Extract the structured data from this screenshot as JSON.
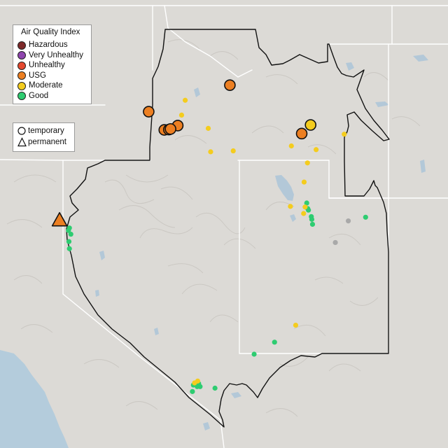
{
  "legend": {
    "title": "Air Quality Index",
    "categories": [
      {
        "label": "Hazardous",
        "color": "#7e2a2a"
      },
      {
        "label": "Very Unhealthy",
        "color": "#8e44ad"
      },
      {
        "label": "Unhealthy",
        "color": "#e4492f"
      },
      {
        "label": "USG",
        "color": "#ec7f22"
      },
      {
        "label": "Moderate",
        "color": "#f4cc1e"
      },
      {
        "label": "Good",
        "color": "#2ecc71"
      }
    ],
    "monitor_types": [
      {
        "label": "temporary",
        "shape": "circle-icon"
      },
      {
        "label": "permanent",
        "shape": "triangle-icon"
      }
    ]
  },
  "colors": {
    "land": "#dcdad6",
    "ocean": "#b4ccdc",
    "lake": "#b3c8d8",
    "boundary": "#111111",
    "state_line": "#ffffff",
    "no_data": "#a9a9a9"
  },
  "monitors": [
    {
      "type": "temporary",
      "category": "USG",
      "lon": -114.78,
      "lat": 49.56
    },
    {
      "type": "temporary",
      "category": "USG",
      "lon": -118.16,
      "lat": 48.7
    },
    {
      "type": "temporary",
      "category": "USG",
      "lon": -116.95,
      "lat": 48.25
    },
    {
      "type": "temporary",
      "category": "USG",
      "lon": -117.51,
      "lat": 48.11
    },
    {
      "type": "temporary",
      "category": "USG",
      "lon": -117.32,
      "lat": 48.12
    },
    {
      "type": "temporary",
      "category": "USG",
      "lon": -117.25,
      "lat": 48.14
    },
    {
      "type": "temporary",
      "category": "USG",
      "lon": -111.79,
      "lat": 47.99
    },
    {
      "type": "temporary",
      "category": "Moderate",
      "lon": -115.68,
      "lat": 48.16
    },
    {
      "type": "temporary",
      "category": "Moderate",
      "lon": -111.42,
      "lat": 48.27
    },
    {
      "type": "temporary",
      "category": "Moderate",
      "lon": -116.64,
      "lat": 49.07
    },
    {
      "type": "temporary",
      "category": "Moderate",
      "lon": -116.79,
      "lat": 48.59
    },
    {
      "type": "temporary",
      "category": "Moderate",
      "lon": -115.58,
      "lat": 47.4
    },
    {
      "type": "temporary",
      "category": "Moderate",
      "lon": -114.64,
      "lat": 47.43
    },
    {
      "type": "temporary",
      "category": "Moderate",
      "lon": -112.22,
      "lat": 47.59
    },
    {
      "type": "temporary",
      "category": "Moderate",
      "lon": -111.19,
      "lat": 47.47
    },
    {
      "type": "temporary",
      "category": "Moderate",
      "lon": -110.02,
      "lat": 47.97
    },
    {
      "type": "temporary",
      "category": "Moderate",
      "lon": -111.55,
      "lat": 47.04
    },
    {
      "type": "temporary",
      "category": "Moderate",
      "lon": -111.69,
      "lat": 46.42
    },
    {
      "type": "temporary",
      "category": "Moderate",
      "lon": -112.26,
      "lat": 45.63
    },
    {
      "type": "temporary",
      "category": "Moderate",
      "lon": -111.65,
      "lat": 45.61
    },
    {
      "type": "temporary",
      "category": "Moderate",
      "lon": -111.71,
      "lat": 45.4
    },
    {
      "type": "temporary",
      "category": "Moderate",
      "lon": -112.04,
      "lat": 41.78
    },
    {
      "type": "temporary",
      "category": "Moderate",
      "lon": -116.12,
      "lat": 39.97
    },
    {
      "type": "temporary",
      "category": "Moderate",
      "lon": -116.25,
      "lat": 39.91
    },
    {
      "type": "permanent",
      "category": "USG",
      "lon": -121.87,
      "lat": 45.19
    },
    {
      "type": "temporary",
      "category": "Good",
      "lon": -121.46,
      "lat": 44.93
    },
    {
      "type": "temporary",
      "category": "Good",
      "lon": -121.5,
      "lat": 44.85
    },
    {
      "type": "temporary",
      "category": "Good",
      "lon": -121.4,
      "lat": 44.73
    },
    {
      "type": "temporary",
      "category": "Good",
      "lon": -121.48,
      "lat": 44.49
    },
    {
      "type": "temporary",
      "category": "Good",
      "lon": -121.46,
      "lat": 44.26
    },
    {
      "type": "temporary",
      "category": "Good",
      "lon": -111.58,
      "lat": 45.74
    },
    {
      "type": "temporary",
      "category": "Good",
      "lon": -111.54,
      "lat": 45.56
    },
    {
      "type": "temporary",
      "category": "Good",
      "lon": -111.51,
      "lat": 45.51
    },
    {
      "type": "temporary",
      "category": "Good",
      "lon": -111.39,
      "lat": 45.3
    },
    {
      "type": "temporary",
      "category": "Good",
      "lon": -111.37,
      "lat": 45.21
    },
    {
      "type": "temporary",
      "category": "Good",
      "lon": -111.34,
      "lat": 45.05
    },
    {
      "type": "temporary",
      "category": "Good",
      "lon": -109.13,
      "lat": 45.28
    },
    {
      "type": "temporary",
      "category": "Good",
      "lon": -112.92,
      "lat": 41.23
    },
    {
      "type": "temporary",
      "category": "Good",
      "lon": -113.77,
      "lat": 40.84
    },
    {
      "type": "temporary",
      "category": "Good",
      "lon": -116.08,
      "lat": 39.89
    },
    {
      "type": "temporary",
      "category": "Good",
      "lon": -116.3,
      "lat": 39.84
    },
    {
      "type": "temporary",
      "category": "Good",
      "lon": -116.14,
      "lat": 39.79
    },
    {
      "type": "temporary",
      "category": "Good",
      "lon": -116.02,
      "lat": 39.79
    },
    {
      "type": "temporary",
      "category": "Good",
      "lon": -115.4,
      "lat": 39.74
    },
    {
      "type": "temporary",
      "category": "Good",
      "lon": -116.34,
      "lat": 39.63
    },
    {
      "type": "temporary",
      "category": "No data",
      "lon": -109.85,
      "lat": 45.16
    },
    {
      "type": "temporary",
      "category": "No data",
      "lon": -110.39,
      "lat": 44.46
    }
  ]
}
